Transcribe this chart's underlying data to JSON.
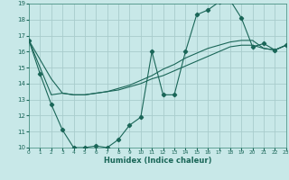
{
  "xlabel": "Humidex (Indice chaleur)",
  "xlim": [
    0,
    23
  ],
  "ylim": [
    10,
    19
  ],
  "xticks": [
    0,
    1,
    2,
    3,
    4,
    5,
    6,
    7,
    8,
    9,
    10,
    11,
    12,
    13,
    14,
    15,
    16,
    17,
    18,
    19,
    20,
    21,
    22,
    23
  ],
  "yticks": [
    10,
    11,
    12,
    13,
    14,
    15,
    16,
    17,
    18,
    19
  ],
  "bg_color": "#c8e8e8",
  "grid_color": "#a8cccc",
  "line_color": "#1a6658",
  "line1_x": [
    0,
    1,
    2,
    3,
    4,
    5,
    6,
    7,
    8,
    9,
    10,
    11,
    12,
    13,
    14,
    15,
    16,
    17,
    18,
    19,
    20,
    21,
    22,
    23
  ],
  "line1_y": [
    16.7,
    14.6,
    12.7,
    11.1,
    10.0,
    10.0,
    10.1,
    10.0,
    10.5,
    11.4,
    11.9,
    16.0,
    13.3,
    13.3,
    16.0,
    18.3,
    18.6,
    19.1,
    19.2,
    18.1,
    16.3,
    16.5,
    16.1,
    16.4
  ],
  "line2_x": [
    0,
    1,
    2,
    3,
    4,
    5,
    6,
    7,
    8,
    9,
    10,
    11,
    12,
    13,
    14,
    15,
    16,
    17,
    18,
    19,
    20,
    21,
    22,
    23
  ],
  "line2_y": [
    16.7,
    15.5,
    14.3,
    13.4,
    13.3,
    13.3,
    13.4,
    13.5,
    13.6,
    13.8,
    14.0,
    14.3,
    14.5,
    14.8,
    15.1,
    15.4,
    15.7,
    16.0,
    16.3,
    16.4,
    16.4,
    16.2,
    16.1,
    16.4
  ],
  "line3_x": [
    0,
    1,
    2,
    3,
    4,
    5,
    6,
    7,
    8,
    9,
    10,
    11,
    12,
    13,
    14,
    15,
    16,
    17,
    18,
    19,
    20,
    21,
    22,
    23
  ],
  "line3_y": [
    16.7,
    15.0,
    13.3,
    13.4,
    13.3,
    13.3,
    13.4,
    13.5,
    13.7,
    13.9,
    14.2,
    14.5,
    14.9,
    15.2,
    15.6,
    15.9,
    16.2,
    16.4,
    16.6,
    16.7,
    16.7,
    16.2,
    16.1,
    16.4
  ]
}
